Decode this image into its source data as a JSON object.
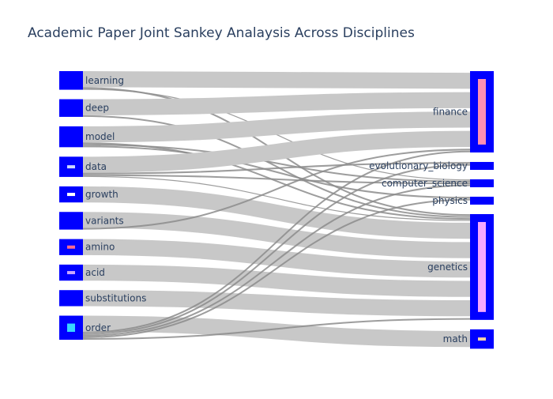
{
  "chart_data": {
    "type": "sankey",
    "title": "Academic Paper Joint Sankey Analaysis Across Disciplines",
    "node_color": "#0000ff",
    "link_color": "#c8c8c8",
    "link_thin_color": "#8c8c8c",
    "sources": [
      "learning",
      "deep",
      "model",
      "data",
      "growth",
      "variants",
      "amino",
      "acid",
      "substitutions",
      "order"
    ],
    "targets": [
      "finance",
      "evolutionary_biology",
      "computer_science",
      "physics",
      "genetics",
      "math"
    ],
    "node_marks": {
      "data": "#cfd8ff",
      "growth": "#ffffff",
      "amino": "#ff6b8f",
      "acid": "#c9a8ff",
      "order": "#38d7ff",
      "finance": "#ff8fb3",
      "genetics": "#f7a8ff",
      "math": "#ffd3a8"
    },
    "links": [
      {
        "source": "learning",
        "target": "finance",
        "value": 10
      },
      {
        "source": "learning",
        "target": "genetics",
        "value": 1
      },
      {
        "source": "learning",
        "target": "computer_science",
        "value": 0.6
      },
      {
        "source": "deep",
        "target": "finance",
        "value": 10
      },
      {
        "source": "deep",
        "target": "genetics",
        "value": 1
      },
      {
        "source": "model",
        "target": "finance",
        "value": 10
      },
      {
        "source": "model",
        "target": "genetics",
        "value": 1
      },
      {
        "source": "model",
        "target": "computer_science",
        "value": 1
      },
      {
        "source": "model",
        "target": "physics",
        "value": 1
      },
      {
        "source": "data",
        "target": "finance",
        "value": 10
      },
      {
        "source": "data",
        "target": "evolutionary_biology",
        "value": 1
      },
      {
        "source": "data",
        "target": "computer_science",
        "value": 1
      },
      {
        "source": "data",
        "target": "genetics",
        "value": 0.6
      },
      {
        "source": "growth",
        "target": "genetics",
        "value": 10
      },
      {
        "source": "variants",
        "target": "genetics",
        "value": 10
      },
      {
        "source": "variants",
        "target": "finance",
        "value": 1
      },
      {
        "source": "amino",
        "target": "genetics",
        "value": 10
      },
      {
        "source": "acid",
        "target": "genetics",
        "value": 10
      },
      {
        "source": "substitutions",
        "target": "genetics",
        "value": 10
      },
      {
        "source": "order",
        "target": "math",
        "value": 10
      },
      {
        "source": "order",
        "target": "finance",
        "value": 1
      },
      {
        "source": "order",
        "target": "evolutionary_biology",
        "value": 1
      },
      {
        "source": "order",
        "target": "computer_science",
        "value": 1
      },
      {
        "source": "order",
        "target": "physics",
        "value": 1
      },
      {
        "source": "order",
        "target": "genetics",
        "value": 1
      }
    ]
  }
}
